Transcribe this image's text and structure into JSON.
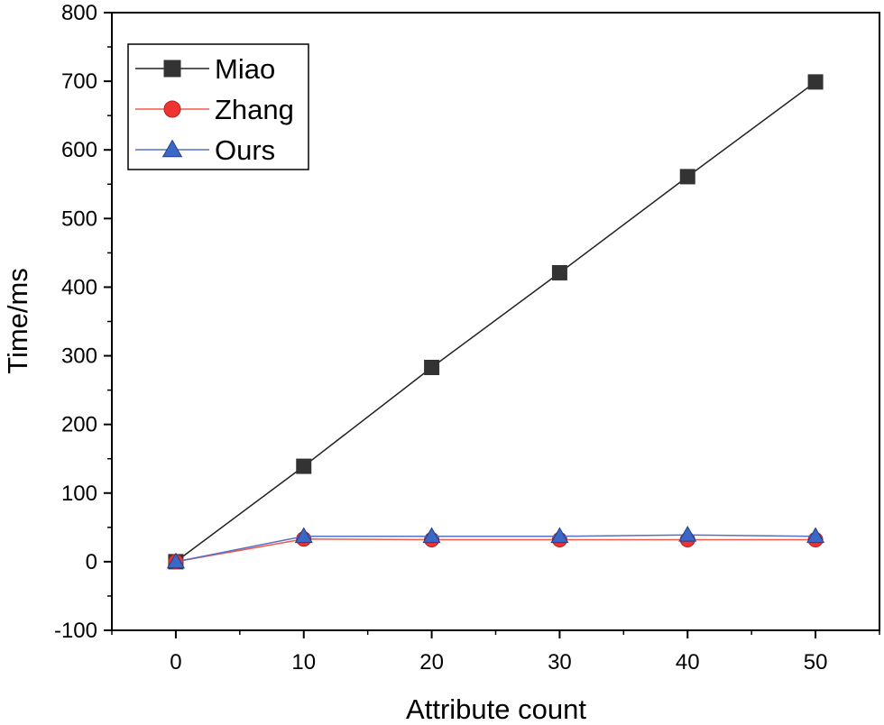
{
  "chart_data": {
    "type": "line",
    "xlabel": "Attribute count",
    "ylabel": "Time/ms",
    "xlim": [
      -5,
      55
    ],
    "ylim": [
      -100,
      800
    ],
    "x_ticks": [
      0,
      10,
      20,
      30,
      40,
      50
    ],
    "y_ticks": [
      -100,
      0,
      100,
      200,
      300,
      400,
      500,
      600,
      700,
      800
    ],
    "x_tick_labels": [
      "0",
      "10",
      "20",
      "30",
      "40",
      "50"
    ],
    "y_tick_labels": [
      "-100",
      "0",
      "100",
      "200",
      "300",
      "400",
      "500",
      "600",
      "700",
      "800"
    ],
    "legend_position": "top-left",
    "grid": false,
    "x": [
      0,
      10,
      20,
      30,
      40,
      50
    ],
    "series": [
      {
        "name": "Miao",
        "values": [
          0,
          139,
          283,
          421,
          561,
          699
        ],
        "color": "#333333",
        "line_color": "#222222",
        "marker": "square"
      },
      {
        "name": "Zhang",
        "values": [
          0,
          33,
          32,
          32,
          32,
          32
        ],
        "color": "#ef3333",
        "line_color": "#ef5a4a",
        "marker": "circle"
      },
      {
        "name": "Ours",
        "values": [
          0,
          37,
          37,
          37,
          39,
          37
        ],
        "color": "#3b67c6",
        "line_color": "#5670c0",
        "marker": "triangle"
      }
    ]
  }
}
